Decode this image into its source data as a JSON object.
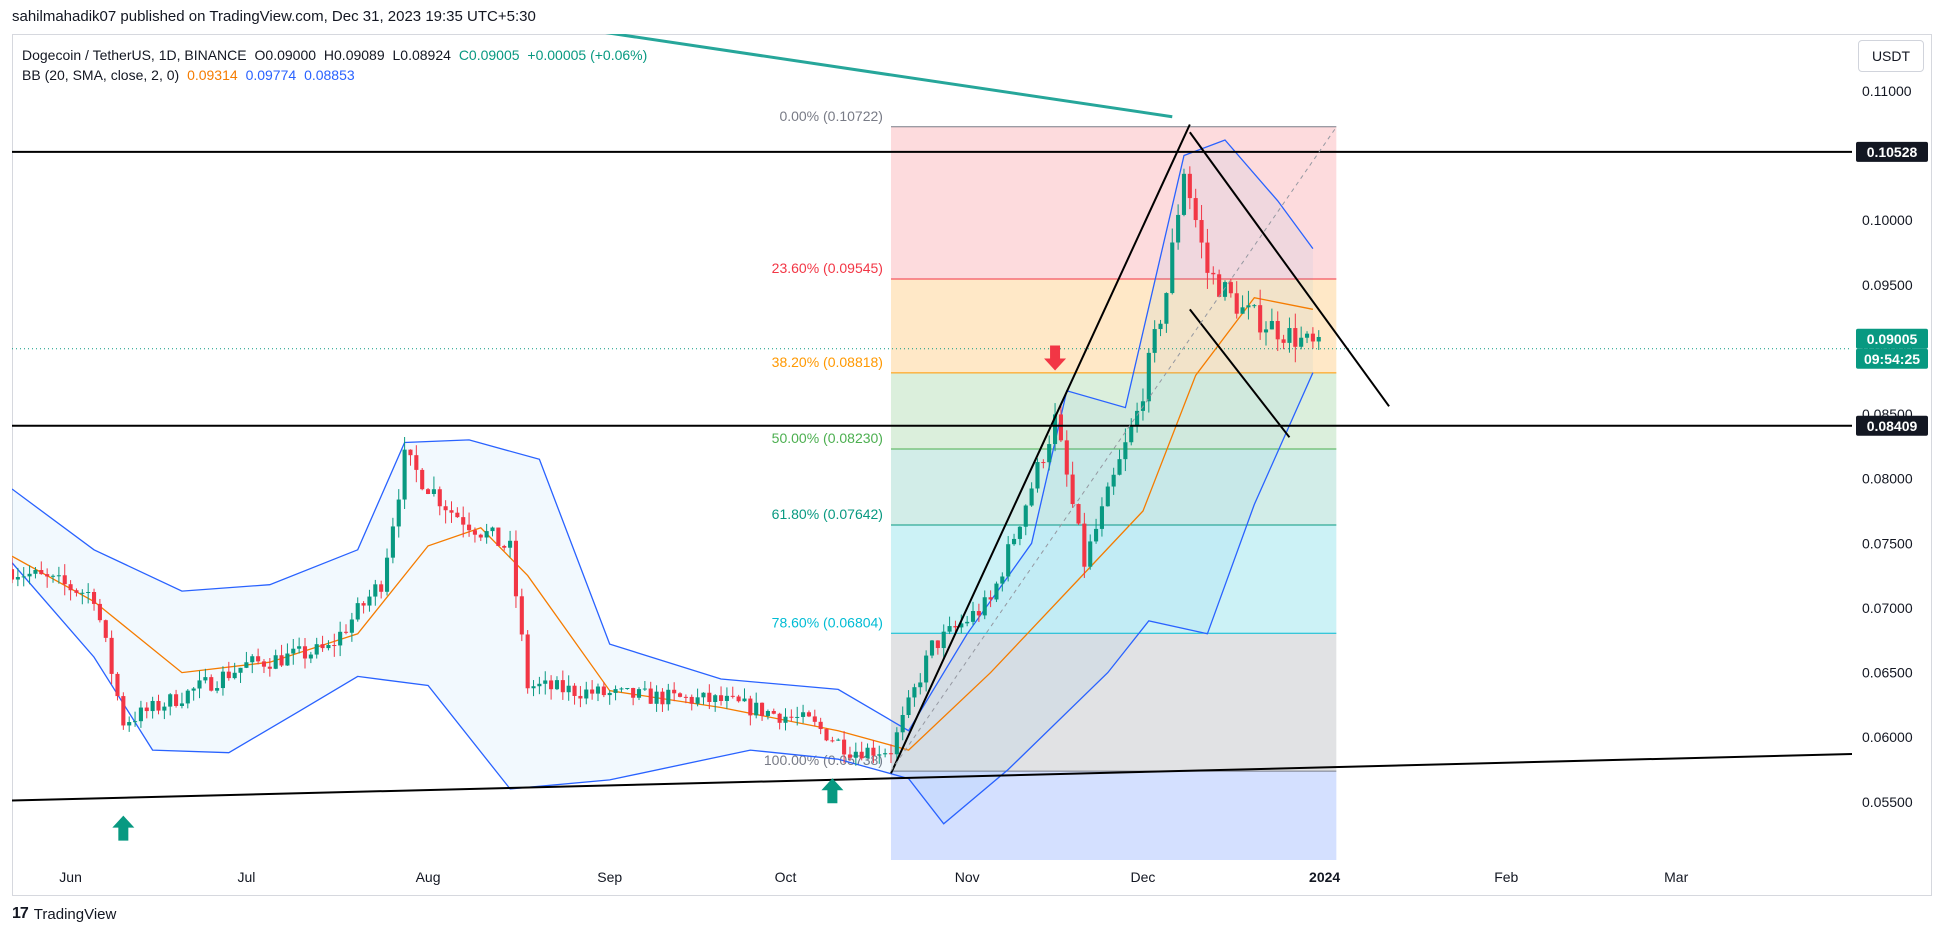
{
  "header": {
    "publisher_line": "sahilmahadik07 published on TradingView.com, Dec 31, 2023 19:35 UTC+5:30"
  },
  "legend": {
    "symbol": "Dogecoin / TetherUS, 1D, BINANCE",
    "open": "O0.09000",
    "high": "H0.09089",
    "low": "L0.08924",
    "close": "C0.09005",
    "change": "+0.00005 (+0.06%)",
    "indicator": "BB (20, SMA, close, 2, 0)",
    "bb_basis": "0.09314",
    "bb_upper": "0.09774",
    "bb_lower": "0.08853"
  },
  "currency_button": "USDT",
  "footer": {
    "brand": "TradingView"
  },
  "colors": {
    "up": "#089981",
    "down": "#f23645",
    "bb_band": "#2962ff",
    "bb_basis": "#f57c00",
    "bb_fill": "#e3f2fd"
  },
  "chart_data": {
    "type": "candlestick",
    "y_axis": {
      "min": 0.0505,
      "max": 0.1144,
      "ticks": [
        "0.11000",
        "0.10500",
        "0.10000",
        "0.09500",
        "0.09000",
        "0.08500",
        "0.08000",
        "0.07500",
        "0.07000",
        "0.06500",
        "0.06000",
        "0.05500"
      ],
      "tick_values": [
        0.11,
        0.105,
        0.1,
        0.095,
        0.09,
        0.085,
        0.08,
        0.075,
        0.07,
        0.065,
        0.06,
        0.055
      ]
    },
    "x_axis": {
      "labels": [
        "Jun",
        "Jul",
        "Aug",
        "Sep",
        "Oct",
        "Nov",
        "Dec",
        "2024",
        "Feb",
        "Mar"
      ],
      "label_dates": [
        "2023-06-01",
        "2023-07-01",
        "2023-08-01",
        "2023-09-01",
        "2023-10-01",
        "2023-11-01",
        "2023-12-01",
        "2024-01-01",
        "2024-02-01",
        "2024-03-01"
      ],
      "start_date": "2023-05-22",
      "end_date": "2024-03-31"
    },
    "price_labels": [
      {
        "text": "0.10528",
        "value": 0.10528,
        "style": "dark"
      },
      {
        "text": "0.08409",
        "value": 0.08409,
        "style": "dark"
      },
      {
        "text": "0.09005",
        "value": 0.09005,
        "style": "up"
      },
      {
        "text": "09:54:25",
        "value": 0.09005,
        "style": "up-sub"
      }
    ],
    "horizontal_levels": [
      0.10528,
      0.08409
    ],
    "last_price": 0.09005,
    "fibonacci": {
      "start_date": "2023-10-19",
      "end_date": "2024-01-03",
      "levels": [
        {
          "label": "0.00% (0.10722)",
          "value": 0.10722,
          "color": "#787b86",
          "fill": "rgba(242,54,69,0.18)"
        },
        {
          "label": "23.60% (0.09545)",
          "value": 0.09545,
          "color": "#f23645",
          "fill": "rgba(255,152,0,0.22)"
        },
        {
          "label": "38.20% (0.08818)",
          "value": 0.08818,
          "color": "#ff9800",
          "fill": "rgba(76,175,80,0.20)"
        },
        {
          "label": "50.00% (0.08230)",
          "value": 0.0823,
          "color": "#4caf50",
          "fill": "rgba(8,153,129,0.18)"
        },
        {
          "label": "61.80% (0.07642)",
          "value": 0.07642,
          "color": "#089981",
          "fill": "rgba(0,188,212,0.20)"
        },
        {
          "label": "78.60% (0.06804)",
          "value": 0.06804,
          "color": "#00bcd4",
          "fill": "rgba(120,123,134,0.22)"
        },
        {
          "label": "100.00% (0.05738)",
          "value": 0.05738,
          "color": "#787b86",
          "fill": "rgba(41,98,255,0.20)"
        }
      ],
      "bottom_value": 0.0505
    },
    "trendlines": [
      {
        "name": "support-trendline",
        "from": [
          "2023-05-22",
          0.0551
        ],
        "to": [
          "2024-03-31",
          0.0587
        ],
        "color": "#000000"
      },
      {
        "name": "rally-trendline",
        "from": [
          "2023-10-19",
          0.0572
        ],
        "to": [
          "2023-12-09",
          0.1074
        ],
        "color": "#000000"
      },
      {
        "name": "channel-upper",
        "from": [
          "2023-12-09",
          0.1068
        ],
        "to": [
          "2024-01-12",
          0.0856
        ],
        "color": "#000000"
      },
      {
        "name": "channel-lower",
        "from": [
          "2023-12-09",
          0.0931
        ],
        "to": [
          "2023-12-26",
          0.0832
        ],
        "color": "#000000"
      },
      {
        "name": "fib-diagonal",
        "from": [
          "2023-10-19",
          0.0574
        ],
        "to": [
          "2024-01-03",
          0.1072
        ],
        "color": "#9598a1",
        "dashed": true
      },
      {
        "name": "teal-trendline",
        "from": [
          "2023-08-30",
          0.1146
        ],
        "to": [
          "2023-12-06",
          0.108
        ],
        "color": "#26a69a",
        "wide": true
      }
    ],
    "markers": [
      {
        "type": "arrow-up",
        "date": "2023-06-10",
        "value": 0.053,
        "color": "#089981"
      },
      {
        "type": "arrow-up",
        "date": "2023-10-09",
        "value": 0.0559,
        "color": "#089981"
      },
      {
        "type": "arrow-down",
        "date": "2023-11-16",
        "value": 0.0893,
        "color": "#f23645"
      }
    ],
    "bollinger": {
      "upper_path": [
        [
          "2023-05-22",
          0.0792
        ],
        [
          "2023-06-05",
          0.0745
        ],
        [
          "2023-06-20",
          0.0713
        ],
        [
          "2023-07-05",
          0.0718
        ],
        [
          "2023-07-20",
          0.0745
        ],
        [
          "2023-07-28",
          0.0828
        ],
        [
          "2023-08-08",
          0.083
        ],
        [
          "2023-08-20",
          0.0815
        ],
        [
          "2023-09-01",
          0.0672
        ],
        [
          "2023-09-20",
          0.0645
        ],
        [
          "2023-10-10",
          0.0637
        ],
        [
          "2023-10-22",
          0.0605
        ],
        [
          "2023-11-01",
          0.068
        ],
        [
          "2023-11-12",
          0.075
        ],
        [
          "2023-11-18",
          0.0868
        ],
        [
          "2023-11-28",
          0.0855
        ],
        [
          "2023-12-08",
          0.105
        ],
        [
          "2023-12-15",
          0.1062
        ],
        [
          "2023-12-24",
          0.1015
        ],
        [
          "2023-12-30",
          0.0978
        ]
      ],
      "lower_path": [
        [
          "2023-05-22",
          0.0735
        ],
        [
          "2023-06-05",
          0.0662
        ],
        [
          "2023-06-15",
          0.059
        ],
        [
          "2023-06-28",
          0.0588
        ],
        [
          "2023-07-10",
          0.062
        ],
        [
          "2023-07-20",
          0.0647
        ],
        [
          "2023-08-01",
          0.064
        ],
        [
          "2023-08-15",
          0.056
        ],
        [
          "2023-09-01",
          0.0567
        ],
        [
          "2023-09-25",
          0.059
        ],
        [
          "2023-10-10",
          0.0583
        ],
        [
          "2023-10-22",
          0.0568
        ],
        [
          "2023-10-28",
          0.0533
        ],
        [
          "2023-11-08",
          0.0575
        ],
        [
          "2023-11-25",
          0.065
        ],
        [
          "2023-12-02",
          0.069
        ],
        [
          "2023-12-12",
          0.068
        ],
        [
          "2023-12-20",
          0.078
        ],
        [
          "2023-12-30",
          0.0882
        ]
      ],
      "basis_path": [
        [
          "2023-05-22",
          0.074
        ],
        [
          "2023-06-05",
          0.0705
        ],
        [
          "2023-06-20",
          0.065
        ],
        [
          "2023-07-05",
          0.0658
        ],
        [
          "2023-07-20",
          0.068
        ],
        [
          "2023-08-01",
          0.0748
        ],
        [
          "2023-08-10",
          0.0762
        ],
        [
          "2023-08-18",
          0.0725
        ],
        [
          "2023-09-01",
          0.0636
        ],
        [
          "2023-09-20",
          0.0623
        ],
        [
          "2023-10-10",
          0.0605
        ],
        [
          "2023-10-22",
          0.059
        ],
        [
          "2023-11-05",
          0.065
        ],
        [
          "2023-11-20",
          0.0722
        ],
        [
          "2023-12-01",
          0.0775
        ],
        [
          "2023-12-10",
          0.088
        ],
        [
          "2023-12-20",
          0.094
        ],
        [
          "2023-12-30",
          0.0931
        ]
      ]
    },
    "candles_close_path": [
      [
        "2023-05-22",
        0.073
      ],
      [
        "2023-06-05",
        0.071
      ],
      [
        "2023-06-10",
        0.0612
      ],
      [
        "2023-06-20",
        0.0632
      ],
      [
        "2023-07-01",
        0.0656
      ],
      [
        "2023-07-15",
        0.0668
      ],
      [
        "2023-07-24",
        0.072
      ],
      [
        "2023-07-28",
        0.0815
      ],
      [
        "2023-08-05",
        0.0775
      ],
      [
        "2023-08-15",
        0.0745
      ],
      [
        "2023-08-18",
        0.064
      ],
      [
        "2023-09-01",
        0.0633
      ],
      [
        "2023-09-20",
        0.0628
      ],
      [
        "2023-10-05",
        0.0612
      ],
      [
        "2023-10-12",
        0.059
      ],
      [
        "2023-10-19",
        0.059
      ],
      [
        "2023-10-26",
        0.067
      ],
      [
        "2023-11-05",
        0.0705
      ],
      [
        "2023-11-16",
        0.0845
      ],
      [
        "2023-11-21",
        0.0735
      ],
      [
        "2023-11-30",
        0.085
      ],
      [
        "2023-12-05",
        0.0945
      ],
      [
        "2023-12-08",
        0.104
      ],
      [
        "2023-12-12",
        0.096
      ],
      [
        "2023-12-18",
        0.093
      ],
      [
        "2023-12-22",
        0.092
      ],
      [
        "2023-12-31",
        0.09
      ]
    ]
  }
}
